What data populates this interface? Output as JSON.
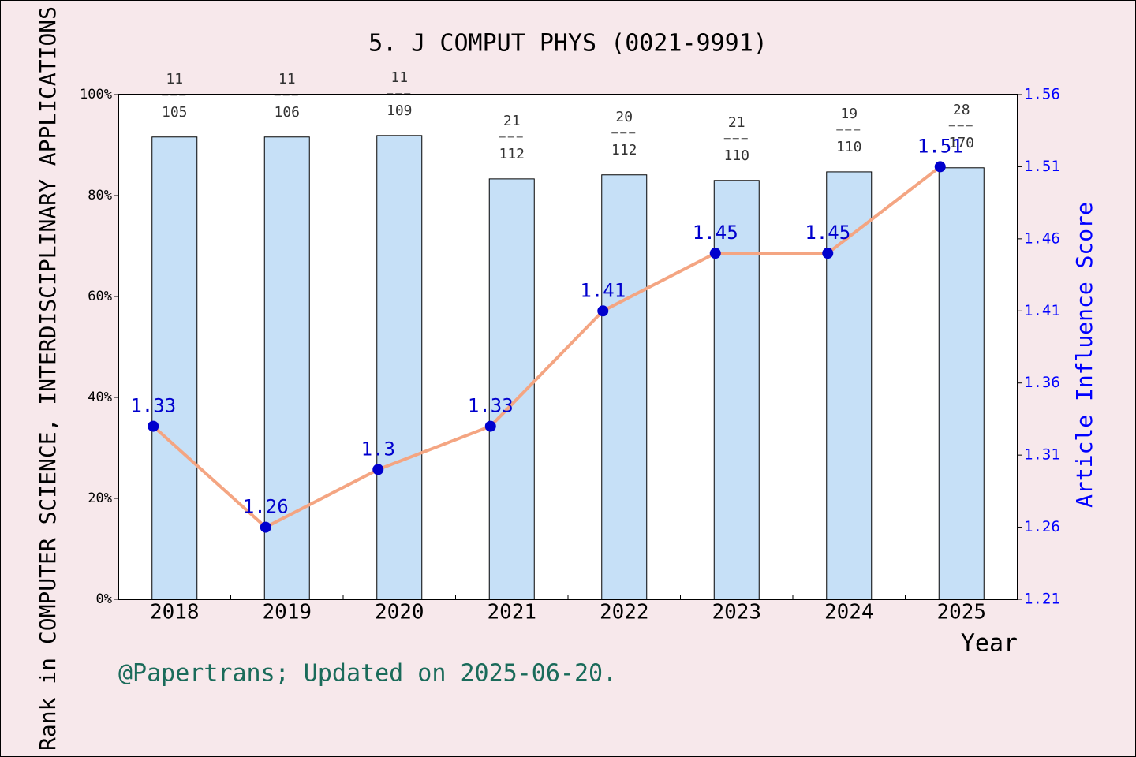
{
  "chart_data": {
    "type": "bar_line",
    "title": "5. J COMPUT PHYS (0021-9991)",
    "x_label": "Year",
    "y_label": "Rank in COMPUTER SCIENCE, INTERDISCIPLINARY APPLICATIONS",
    "y2_label": "Article Influence Score",
    "footer": "@Papertrans; Updated on 2025-06-20.",
    "categories": [
      "2018",
      "2019",
      "2020",
      "2021",
      "2022",
      "2023",
      "2024",
      "2025"
    ],
    "series": [
      {
        "type": "bar",
        "color": "#c6e0f7",
        "values": [
          91.6,
          91.6,
          91.9,
          83.3,
          84.1,
          83.0,
          84.7,
          85.5
        ],
        "ranks": [
          "11",
          "11",
          "11",
          "21",
          "20",
          "21",
          "19",
          "28"
        ],
        "totals": [
          "105",
          "106",
          "109",
          "112",
          "112",
          "110",
          "110",
          "170"
        ]
      },
      {
        "type": "line",
        "axis": "y2",
        "color": "#f4a582",
        "marker_color": "#0000cd",
        "values": [
          1.33,
          1.26,
          1.3,
          1.33,
          1.41,
          1.45,
          1.45,
          1.51
        ]
      }
    ],
    "ylim": [
      0,
      100
    ],
    "yticks": [
      {
        "value": 0,
        "label": "0%"
      },
      {
        "value": 20,
        "label": "20%"
      },
      {
        "value": 40,
        "label": "40%"
      },
      {
        "value": 60,
        "label": "60%"
      },
      {
        "value": 80,
        "label": "80%"
      },
      {
        "value": 100,
        "label": "100%"
      }
    ],
    "y2lim": [
      1.21,
      1.56
    ],
    "y2ticks": [
      1.21,
      1.26,
      1.31,
      1.36,
      1.41,
      1.46,
      1.51,
      1.56
    ]
  }
}
